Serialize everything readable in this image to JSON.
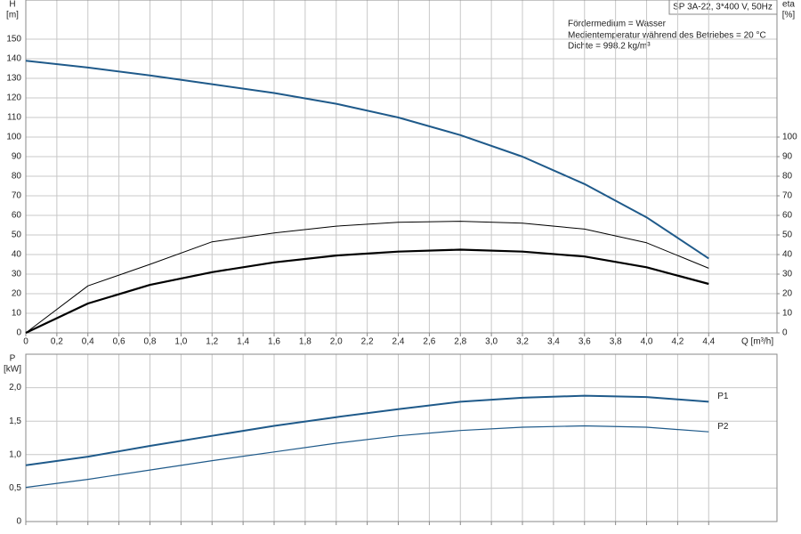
{
  "chart_data": [
    {
      "type": "line",
      "title": "SP 3A-22, 3*400 V, 50Hz",
      "annotations": [
        "Fördermedium = Wasser",
        "Medientemperatur während des Betriebes = 20 °C",
        "Dichte = 998.2 kg/m³"
      ],
      "y_label": "H",
      "y_unit": "[m]",
      "y2_label": "eta",
      "y2_unit": "[%]",
      "x_label": "Q [m³/h]",
      "xlim": [
        0,
        4.84
      ],
      "xticks": [
        0,
        {
          "value": 0.2,
          "label": "0,2"
        },
        {
          "value": 0.4,
          "label": "0,4"
        },
        {
          "value": 0.6,
          "label": "0,6"
        },
        {
          "value": 0.8,
          "label": "0,8"
        },
        {
          "value": 1.0,
          "label": "1,0"
        },
        {
          "value": 1.2,
          "label": "1,2"
        },
        {
          "value": 1.4,
          "label": "1,4"
        },
        {
          "value": 1.6,
          "label": "1,6"
        },
        {
          "value": 1.8,
          "label": "1,8"
        },
        {
          "value": 2.0,
          "label": "2,0"
        },
        {
          "value": 2.2,
          "label": "2,2"
        },
        {
          "value": 2.4,
          "label": "2,4"
        },
        {
          "value": 2.6,
          "label": "2,6"
        },
        {
          "value": 2.8,
          "label": "2,8"
        },
        {
          "value": 3.0,
          "label": "3,0"
        },
        {
          "value": 3.2,
          "label": "3,2"
        },
        {
          "value": 3.4,
          "label": "3,4"
        },
        {
          "value": 3.6,
          "label": "3,6"
        },
        {
          "value": 3.8,
          "label": "3,8"
        },
        {
          "value": 4.0,
          "label": "4,0"
        },
        {
          "value": 4.2,
          "label": "4,2"
        },
        {
          "value": 4.4,
          "label": "4,4"
        }
      ],
      "ylim": [
        0,
        170
      ],
      "yticks": [
        0,
        10,
        20,
        30,
        40,
        50,
        60,
        70,
        80,
        90,
        100,
        110,
        120,
        130,
        140,
        150
      ],
      "y2lim": [
        0,
        170
      ],
      "y2ticks": [
        0,
        10,
        20,
        30,
        40,
        50,
        60,
        70,
        80,
        90,
        100
      ],
      "grid": true,
      "x": [
        0,
        0.4,
        0.8,
        1.2,
        1.6,
        2.0,
        2.4,
        2.8,
        3.2,
        3.6,
        4.0,
        4.4
      ],
      "series": [
        {
          "color": "#1f5a8a",
          "width": 2,
          "values": [
            139,
            135.5,
            131.5,
            127,
            122.5,
            117,
            110,
            101,
            90,
            76,
            59,
            38
          ]
        },
        {
          "color": "#000000",
          "width": 1,
          "axis": "y2",
          "values": [
            0,
            24,
            35,
            46.5,
            51,
            54.5,
            56.5,
            57,
            56,
            53,
            46,
            33
          ]
        },
        {
          "color": "#000000",
          "width": 2.2,
          "axis": "y2",
          "values": [
            0,
            15,
            24.5,
            31,
            36,
            39.5,
            41.5,
            42.5,
            41.5,
            39,
            33.5,
            25
          ]
        }
      ]
    },
    {
      "type": "line",
      "y_label": "P",
      "y_unit": "[kW]",
      "ylim": [
        0,
        2.5
      ],
      "yticks": [
        0,
        {
          "value": 0.5,
          "label": "0,5"
        },
        {
          "value": 1.0,
          "label": "1,0"
        },
        {
          "value": 1.5,
          "label": "1,5"
        },
        {
          "value": 2.0,
          "label": "2,0"
        }
      ],
      "grid": true,
      "x": [
        0,
        0.4,
        0.8,
        1.2,
        1.6,
        2.0,
        2.4,
        2.8,
        3.2,
        3.6,
        4.0,
        4.4
      ],
      "series": [
        {
          "name": "P1",
          "color": "#1f5a8a",
          "width": 2,
          "values": [
            0.84,
            0.97,
            1.13,
            1.28,
            1.43,
            1.56,
            1.68,
            1.79,
            1.85,
            1.88,
            1.86,
            1.79
          ]
        },
        {
          "name": "P2",
          "color": "#1f5a8a",
          "width": 1.2,
          "values": [
            0.51,
            0.63,
            0.77,
            0.91,
            1.04,
            1.17,
            1.28,
            1.36,
            1.41,
            1.43,
            1.41,
            1.34
          ]
        }
      ]
    }
  ]
}
